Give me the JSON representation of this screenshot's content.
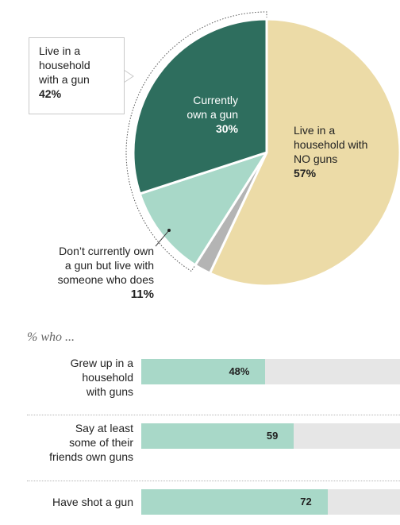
{
  "chart_data": [
    {
      "type": "pie",
      "slices": [
        {
          "label": "Live in a household with NO guns",
          "value": 57,
          "display": "57%",
          "color": "#ecdba7"
        },
        {
          "label": "Other",
          "value": 2,
          "display": "",
          "color": "#b4b4b4"
        },
        {
          "label": "Don't currently own a gun but live with someone who does",
          "value": 11,
          "display": "11%",
          "color": "#a8d8c8"
        },
        {
          "label": "Currently own a gun",
          "value": 30,
          "display": "30%",
          "color": "#2e6e5e"
        }
      ],
      "group_callout": {
        "label": "Live in a household with a gun",
        "value": 42,
        "display": "42%"
      }
    },
    {
      "type": "bar",
      "orientation": "horizontal",
      "heading": "% who ...",
      "categories": [
        "Grew up in a household with guns",
        "Say at least some of their friends own guns",
        "Have shot a gun"
      ],
      "values": [
        48,
        59,
        72
      ],
      "value_labels": [
        "48%",
        "59",
        "72"
      ],
      "xlim": [
        0,
        100
      ],
      "colors": {
        "fill": "#a8d8c8",
        "track": "#e6e6e6"
      }
    }
  ],
  "labels": {
    "callout_line1": "Live in a",
    "callout_line2": "household",
    "callout_line3": "with a gun",
    "callout_pct": "42%",
    "own_line1": "Currently",
    "own_line2": "own a gun",
    "own_pct": "30%",
    "no_line1": "Live in a",
    "no_line2": "household with",
    "no_line3": "NO guns",
    "no_pct": "57%",
    "live_line1": "Don’t currently own",
    "live_line2": "a gun but live with",
    "live_line3": "someone who does",
    "live_pct": "11%"
  },
  "bars": {
    "heading": "% who ...",
    "rows": [
      {
        "lines": [
          "Grew up in a",
          "household",
          "with guns"
        ],
        "value_label": "48%"
      },
      {
        "lines": [
          "Say at least",
          "some of their",
          "friends own guns"
        ],
        "value_label": "59"
      },
      {
        "lines": [
          "Have shot a gun"
        ],
        "value_label": "72"
      }
    ]
  }
}
